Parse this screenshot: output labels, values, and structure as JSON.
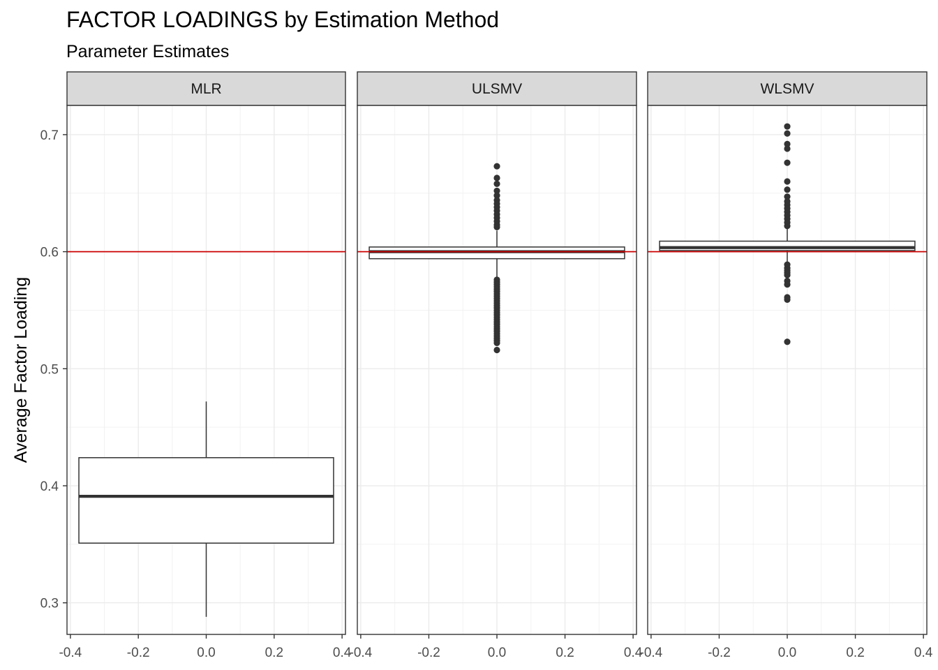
{
  "chart_data": {
    "type": "boxplot",
    "title": "FACTOR LOADINGS by Estimation Method",
    "subtitle": "Parameter Estimates",
    "ylabel": "Average Factor Loading",
    "xlabel": "",
    "ylim": [
      0.273,
      0.725
    ],
    "xlim": [
      -0.41,
      0.41
    ],
    "y_ticks": [
      0.3,
      0.4,
      0.5,
      0.6,
      0.7
    ],
    "y_tick_labels": [
      "0.3",
      "0.4",
      "0.5",
      "0.6",
      "0.7"
    ],
    "x_ticks": [
      -0.4,
      -0.2,
      0.0,
      0.2,
      0.4
    ],
    "x_tick_labels": [
      "-0.4",
      "-0.2",
      "0.0",
      "0.2",
      "0.4"
    ],
    "reference_line": {
      "y": 0.6,
      "color": "#cc0000"
    },
    "grid": true,
    "facets": [
      {
        "label": "MLR",
        "box": {
          "whisker_low": 0.288,
          "q1": 0.351,
          "median": 0.391,
          "q3": 0.424,
          "whisker_high": 0.472
        },
        "outliers": []
      },
      {
        "label": "ULSMV",
        "box": {
          "whisker_low": 0.578,
          "q1": 0.594,
          "median": 0.6,
          "q3": 0.604,
          "whisker_high": 0.618
        },
        "outliers": [
          0.673,
          0.663,
          0.658,
          0.652,
          0.648,
          0.644,
          0.641,
          0.638,
          0.635,
          0.632,
          0.629,
          0.626,
          0.623,
          0.621,
          0.576,
          0.574,
          0.572,
          0.57,
          0.568,
          0.566,
          0.564,
          0.562,
          0.56,
          0.558,
          0.556,
          0.554,
          0.552,
          0.55,
          0.548,
          0.546,
          0.544,
          0.542,
          0.54,
          0.538,
          0.536,
          0.534,
          0.532,
          0.53,
          0.528,
          0.526,
          0.524,
          0.522,
          0.516
        ]
      },
      {
        "label": "WLSMV",
        "box": {
          "whisker_low": 0.59,
          "q1": 0.601,
          "median": 0.6035,
          "q3": 0.609,
          "whisker_high": 0.62
        },
        "outliers": [
          0.707,
          0.701,
          0.692,
          0.688,
          0.676,
          0.66,
          0.653,
          0.647,
          0.643,
          0.64,
          0.637,
          0.634,
          0.631,
          0.628,
          0.625,
          0.622,
          0.589,
          0.586,
          0.584,
          0.582,
          0.58,
          0.575,
          0.572,
          0.561,
          0.559,
          0.523
        ]
      }
    ]
  }
}
